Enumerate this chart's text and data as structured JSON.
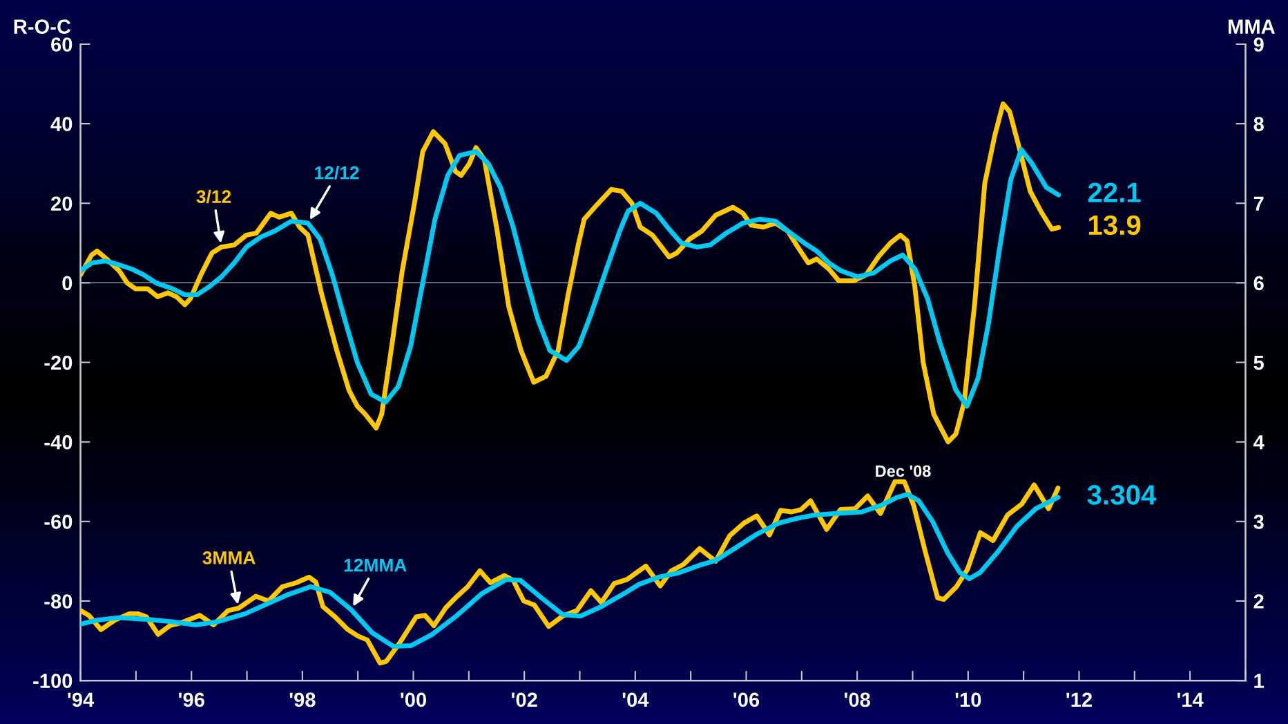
{
  "chart_data": {
    "type": "line",
    "ylabel": "R-O-C",
    "y2label": "MMA",
    "xlim": [
      1994,
      2015
    ],
    "xticks": [
      {
        "value": 1994,
        "label": "'94"
      },
      {
        "value": 1995,
        "label": null
      },
      {
        "value": 1996,
        "label": "'96"
      },
      {
        "value": 1997,
        "label": null
      },
      {
        "value": 1998,
        "label": "'98"
      },
      {
        "value": 1999,
        "label": null
      },
      {
        "value": 2000,
        "label": "'00"
      },
      {
        "value": 2001,
        "label": null
      },
      {
        "value": 2002,
        "label": "'02"
      },
      {
        "value": 2003,
        "label": null
      },
      {
        "value": 2004,
        "label": "'04"
      },
      {
        "value": 2005,
        "label": null
      },
      {
        "value": 2006,
        "label": "'06"
      },
      {
        "value": 2007,
        "label": null
      },
      {
        "value": 2008,
        "label": "'08"
      },
      {
        "value": 2009,
        "label": null
      },
      {
        "value": 2010,
        "label": "'10"
      },
      {
        "value": 2011,
        "label": null
      },
      {
        "value": 2012,
        "label": "'12"
      },
      {
        "value": 2013,
        "label": null
      },
      {
        "value": 2014,
        "label": "'14"
      },
      {
        "value": 2015,
        "label": null
      }
    ],
    "ylim": [
      -100,
      60
    ],
    "yticks": [
      -100,
      -80,
      -60,
      -40,
      -20,
      0,
      20,
      40,
      60
    ],
    "y2lim": [
      1,
      9
    ],
    "y2ticks": [
      1,
      2,
      3,
      4,
      5,
      6,
      7,
      8,
      9
    ],
    "ref_lines": [
      {
        "axis": "y",
        "value": 0,
        "color": "#b0b0b0"
      }
    ],
    "annotations": [
      "Dec '08"
    ],
    "series": [
      {
        "name": "3/12",
        "color": "#ffc800",
        "x": [
          1994.0,
          1994.2,
          1994.3,
          1994.47,
          1994.7,
          1994.84,
          1994.99,
          1995.21,
          1995.39,
          1995.58,
          1995.73,
          1995.88,
          1995.98,
          1996.17,
          1996.37,
          1996.54,
          1996.77,
          1996.99,
          1997.17,
          1997.43,
          1997.58,
          1997.8,
          1997.95,
          1998.1,
          1998.35,
          1998.62,
          1998.84,
          1998.99,
          1999.13,
          1999.33,
          1999.43,
          1999.62,
          1999.8,
          2000.02,
          2000.17,
          2000.36,
          2000.57,
          2000.76,
          2000.86,
          2001.01,
          2001.13,
          2001.28,
          2001.5,
          2001.72,
          2001.94,
          2002.17,
          2002.39,
          2002.61,
          2002.79,
          2002.98,
          2003.08,
          2003.27,
          2003.57,
          2003.76,
          2003.94,
          2004.09,
          2004.31,
          2004.61,
          2004.75,
          2004.98,
          2005.2,
          2005.45,
          2005.76,
          2005.94,
          2006.09,
          2006.31,
          2006.53,
          2006.75,
          2006.93,
          2007.12,
          2007.27,
          2007.49,
          2007.67,
          2007.93,
          2008.16,
          2008.38,
          2008.6,
          2008.78,
          2008.9,
          2009.04,
          2009.19,
          2009.38,
          2009.64,
          2009.78,
          2009.93,
          2010.12,
          2010.3,
          2010.48,
          2010.63,
          2010.75,
          2010.92,
          2011.12,
          2011.31,
          2011.51,
          2011.63
        ],
        "values": [
          2,
          7,
          8,
          6,
          3,
          0,
          -1.5,
          -1.5,
          -3.5,
          -2.5,
          -3.5,
          -5.5,
          -4,
          2,
          7.5,
          9,
          9.5,
          12,
          12.5,
          17.5,
          16.5,
          17.5,
          14,
          12,
          -3,
          -17,
          -27,
          -31,
          -33,
          -36.5,
          -33,
          -15,
          3,
          20,
          33,
          38,
          35,
          28,
          27,
          30,
          34,
          31,
          14,
          -6,
          -17,
          -25,
          -23.5,
          -17,
          -3,
          10,
          16,
          19,
          23.5,
          23,
          20,
          14,
          12,
          6.5,
          7.5,
          11,
          13,
          17,
          19,
          17.5,
          14.5,
          14,
          15,
          13,
          9,
          5,
          6,
          3.5,
          0.5,
          0.5,
          2,
          6.5,
          10,
          12,
          10.5,
          -1,
          -20,
          -33,
          -40,
          -38,
          -30,
          -5,
          25,
          37,
          45,
          43,
          34,
          23,
          18,
          13.5,
          13.9
        ],
        "value_labels": [
          null,
          null,
          null,
          null,
          null,
          null,
          null,
          null,
          null,
          null,
          null,
          null,
          null,
          null,
          null,
          null,
          null,
          null,
          null,
          null,
          null,
          null,
          null,
          null,
          null,
          null,
          null,
          null,
          null,
          null,
          null,
          null,
          null,
          null,
          null,
          null,
          null,
          null,
          null,
          null,
          null,
          null,
          null,
          null,
          null,
          null,
          null,
          null,
          null,
          null,
          null,
          null,
          null,
          null,
          null,
          null,
          null,
          null,
          null,
          null,
          null,
          null,
          null,
          null,
          null,
          null,
          null,
          null,
          null,
          null,
          null,
          null,
          null,
          null,
          null,
          null,
          null,
          null,
          null,
          null,
          null,
          null,
          null,
          null,
          null,
          null,
          null,
          null,
          null,
          null,
          null,
          null,
          null,
          null,
          "13.9"
        ]
      },
      {
        "name": "12/12",
        "color": "#00c8f0",
        "x": [
          1994.0,
          1994.2,
          1994.44,
          1994.7,
          1994.92,
          1995.14,
          1995.36,
          1995.66,
          1995.88,
          1996.1,
          1996.32,
          1996.54,
          1996.77,
          1996.99,
          1997.25,
          1997.5,
          1997.8,
          1998.1,
          1998.32,
          1998.54,
          1998.76,
          1998.99,
          1999.24,
          1999.5,
          1999.73,
          1999.95,
          2000.17,
          2000.39,
          2000.62,
          2000.83,
          2001.13,
          2001.35,
          2001.57,
          2001.8,
          2002.02,
          2002.24,
          2002.46,
          2002.76,
          2002.98,
          2003.2,
          2003.47,
          2003.72,
          2003.87,
          2004.09,
          2004.38,
          2004.61,
          2004.83,
          2005.12,
          2005.35,
          2005.64,
          2005.94,
          2006.24,
          2006.53,
          2006.75,
          2007.05,
          2007.27,
          2007.49,
          2007.71,
          2008.01,
          2008.3,
          2008.6,
          2008.82,
          2009.04,
          2009.27,
          2009.49,
          2009.78,
          2009.98,
          2010.18,
          2010.37,
          2010.56,
          2010.77,
          2010.96,
          2011.15,
          2011.41,
          2011.63
        ],
        "values": [
          3,
          5,
          5.5,
          4.5,
          3.5,
          2,
          0,
          -1.5,
          -3,
          -3,
          -1,
          1.5,
          5,
          9,
          11.5,
          13,
          15.5,
          15,
          11,
          2,
          -9,
          -20,
          -28,
          -30,
          -26,
          -16,
          0,
          16,
          27,
          32,
          33,
          30,
          24,
          14,
          2,
          -9,
          -17,
          -19.5,
          -16,
          -8,
          3,
          13,
          18,
          20,
          17.5,
          13.5,
          10,
          9,
          9.5,
          12.5,
          15,
          16,
          15.5,
          13,
          10,
          8,
          5,
          3,
          1.5,
          2.5,
          5.5,
          7,
          3.5,
          -4,
          -15,
          -27,
          -31,
          -24,
          -10,
          8,
          26,
          33.5,
          30,
          24,
          22.1
        ],
        "value_labels": [
          null,
          null,
          null,
          null,
          null,
          null,
          null,
          null,
          null,
          null,
          null,
          null,
          null,
          null,
          null,
          null,
          null,
          null,
          null,
          null,
          null,
          null,
          null,
          null,
          null,
          null,
          null,
          null,
          null,
          null,
          null,
          null,
          null,
          null,
          null,
          null,
          null,
          null,
          null,
          null,
          null,
          null,
          null,
          null,
          null,
          null,
          null,
          null,
          null,
          null,
          null,
          null,
          null,
          null,
          null,
          null,
          null,
          null,
          null,
          null,
          null,
          null,
          null,
          null,
          null,
          null,
          null,
          null,
          null,
          null,
          null,
          null,
          null,
          null,
          "22.1"
        ]
      },
      {
        "name": "3MMA",
        "color": "#ffc800",
        "axis": "y2",
        "x": [
          1994.0,
          1994.15,
          1994.37,
          1994.62,
          1994.88,
          1995.04,
          1995.19,
          1995.4,
          1995.61,
          1995.83,
          1996.15,
          1996.4,
          1996.66,
          1996.85,
          1997.16,
          1997.39,
          1997.64,
          1997.89,
          1998.12,
          1998.24,
          1998.37,
          1998.59,
          1998.82,
          1999.0,
          1999.17,
          1999.4,
          1999.51,
          1999.77,
          2000.05,
          2000.21,
          2000.37,
          2000.59,
          2000.79,
          2000.98,
          2001.2,
          2001.39,
          2001.64,
          2001.8,
          2001.99,
          2002.18,
          2002.44,
          2002.69,
          2002.95,
          2003.2,
          2003.39,
          2003.62,
          2003.85,
          2004.19,
          2004.45,
          2004.65,
          2004.87,
          2005.16,
          2005.45,
          2005.7,
          2005.96,
          2006.19,
          2006.42,
          2006.62,
          2006.82,
          2006.99,
          2007.16,
          2007.45,
          2007.7,
          2007.96,
          2008.19,
          2008.42,
          2008.68,
          2008.85,
          2009.02,
          2009.22,
          2009.45,
          2009.56,
          2009.79,
          2009.99,
          2010.22,
          2010.45,
          2010.71,
          2010.97,
          2011.19,
          2011.45,
          2011.62
        ],
        "values": [
          1.88,
          1.82,
          1.64,
          1.76,
          1.84,
          1.84,
          1.8,
          1.58,
          1.69,
          1.73,
          1.82,
          1.7,
          1.88,
          1.91,
          2.06,
          2.0,
          2.18,
          2.23,
          2.3,
          2.24,
          1.93,
          1.8,
          1.64,
          1.56,
          1.51,
          1.22,
          1.24,
          1.49,
          1.8,
          1.82,
          1.69,
          1.92,
          2.06,
          2.18,
          2.38,
          2.23,
          2.32,
          2.26,
          2.0,
          1.95,
          1.68,
          1.81,
          1.88,
          2.13,
          1.98,
          2.22,
          2.27,
          2.44,
          2.19,
          2.38,
          2.46,
          2.66,
          2.5,
          2.82,
          2.98,
          3.07,
          2.83,
          3.14,
          3.12,
          3.15,
          3.26,
          2.9,
          3.15,
          3.16,
          3.32,
          3.1,
          3.5,
          3.5,
          3.2,
          2.64,
          2.04,
          2.02,
          2.18,
          2.4,
          2.86,
          2.76,
          3.08,
          3.22,
          3.46,
          3.16,
          3.42
        ]
      },
      {
        "name": "12MMA",
        "color": "#00c8f0",
        "axis": "y2",
        "x": [
          1994.0,
          1994.3,
          1994.69,
          1995.19,
          1995.64,
          1996.08,
          1996.47,
          1996.97,
          1997.35,
          1997.74,
          1998.15,
          1998.5,
          1998.88,
          1999.26,
          1999.64,
          1999.96,
          2000.34,
          2000.79,
          2001.23,
          2001.67,
          2001.93,
          2002.31,
          2002.69,
          2003.01,
          2003.39,
          2003.79,
          2004.07,
          2004.42,
          2004.76,
          2005.16,
          2005.45,
          2005.79,
          2006.19,
          2006.59,
          2006.93,
          2007.22,
          2007.62,
          2008.08,
          2008.42,
          2008.71,
          2008.91,
          2009.11,
          2009.36,
          2009.62,
          2009.85,
          2010.02,
          2010.22,
          2010.54,
          2010.88,
          2011.22,
          2011.62
        ],
        "values": [
          1.71,
          1.76,
          1.79,
          1.77,
          1.74,
          1.7,
          1.74,
          1.84,
          1.96,
          2.08,
          2.18,
          2.11,
          1.89,
          1.6,
          1.43,
          1.44,
          1.58,
          1.82,
          2.09,
          2.27,
          2.26,
          2.04,
          1.83,
          1.81,
          1.93,
          2.09,
          2.21,
          2.3,
          2.35,
          2.45,
          2.51,
          2.66,
          2.84,
          2.98,
          3.04,
          3.08,
          3.1,
          3.12,
          3.2,
          3.3,
          3.34,
          3.26,
          3.0,
          2.62,
          2.36,
          2.28,
          2.36,
          2.62,
          2.94,
          3.16,
          3.304
        ],
        "value_labels": [
          null,
          null,
          null,
          null,
          null,
          null,
          null,
          null,
          null,
          null,
          null,
          null,
          null,
          null,
          null,
          null,
          null,
          null,
          null,
          null,
          null,
          null,
          null,
          null,
          null,
          null,
          null,
          null,
          null,
          null,
          null,
          null,
          null,
          null,
          null,
          null,
          null,
          null,
          null,
          null,
          null,
          null,
          null,
          null,
          null,
          null,
          null,
          null,
          null,
          null,
          "3.304"
        ]
      }
    ]
  }
}
